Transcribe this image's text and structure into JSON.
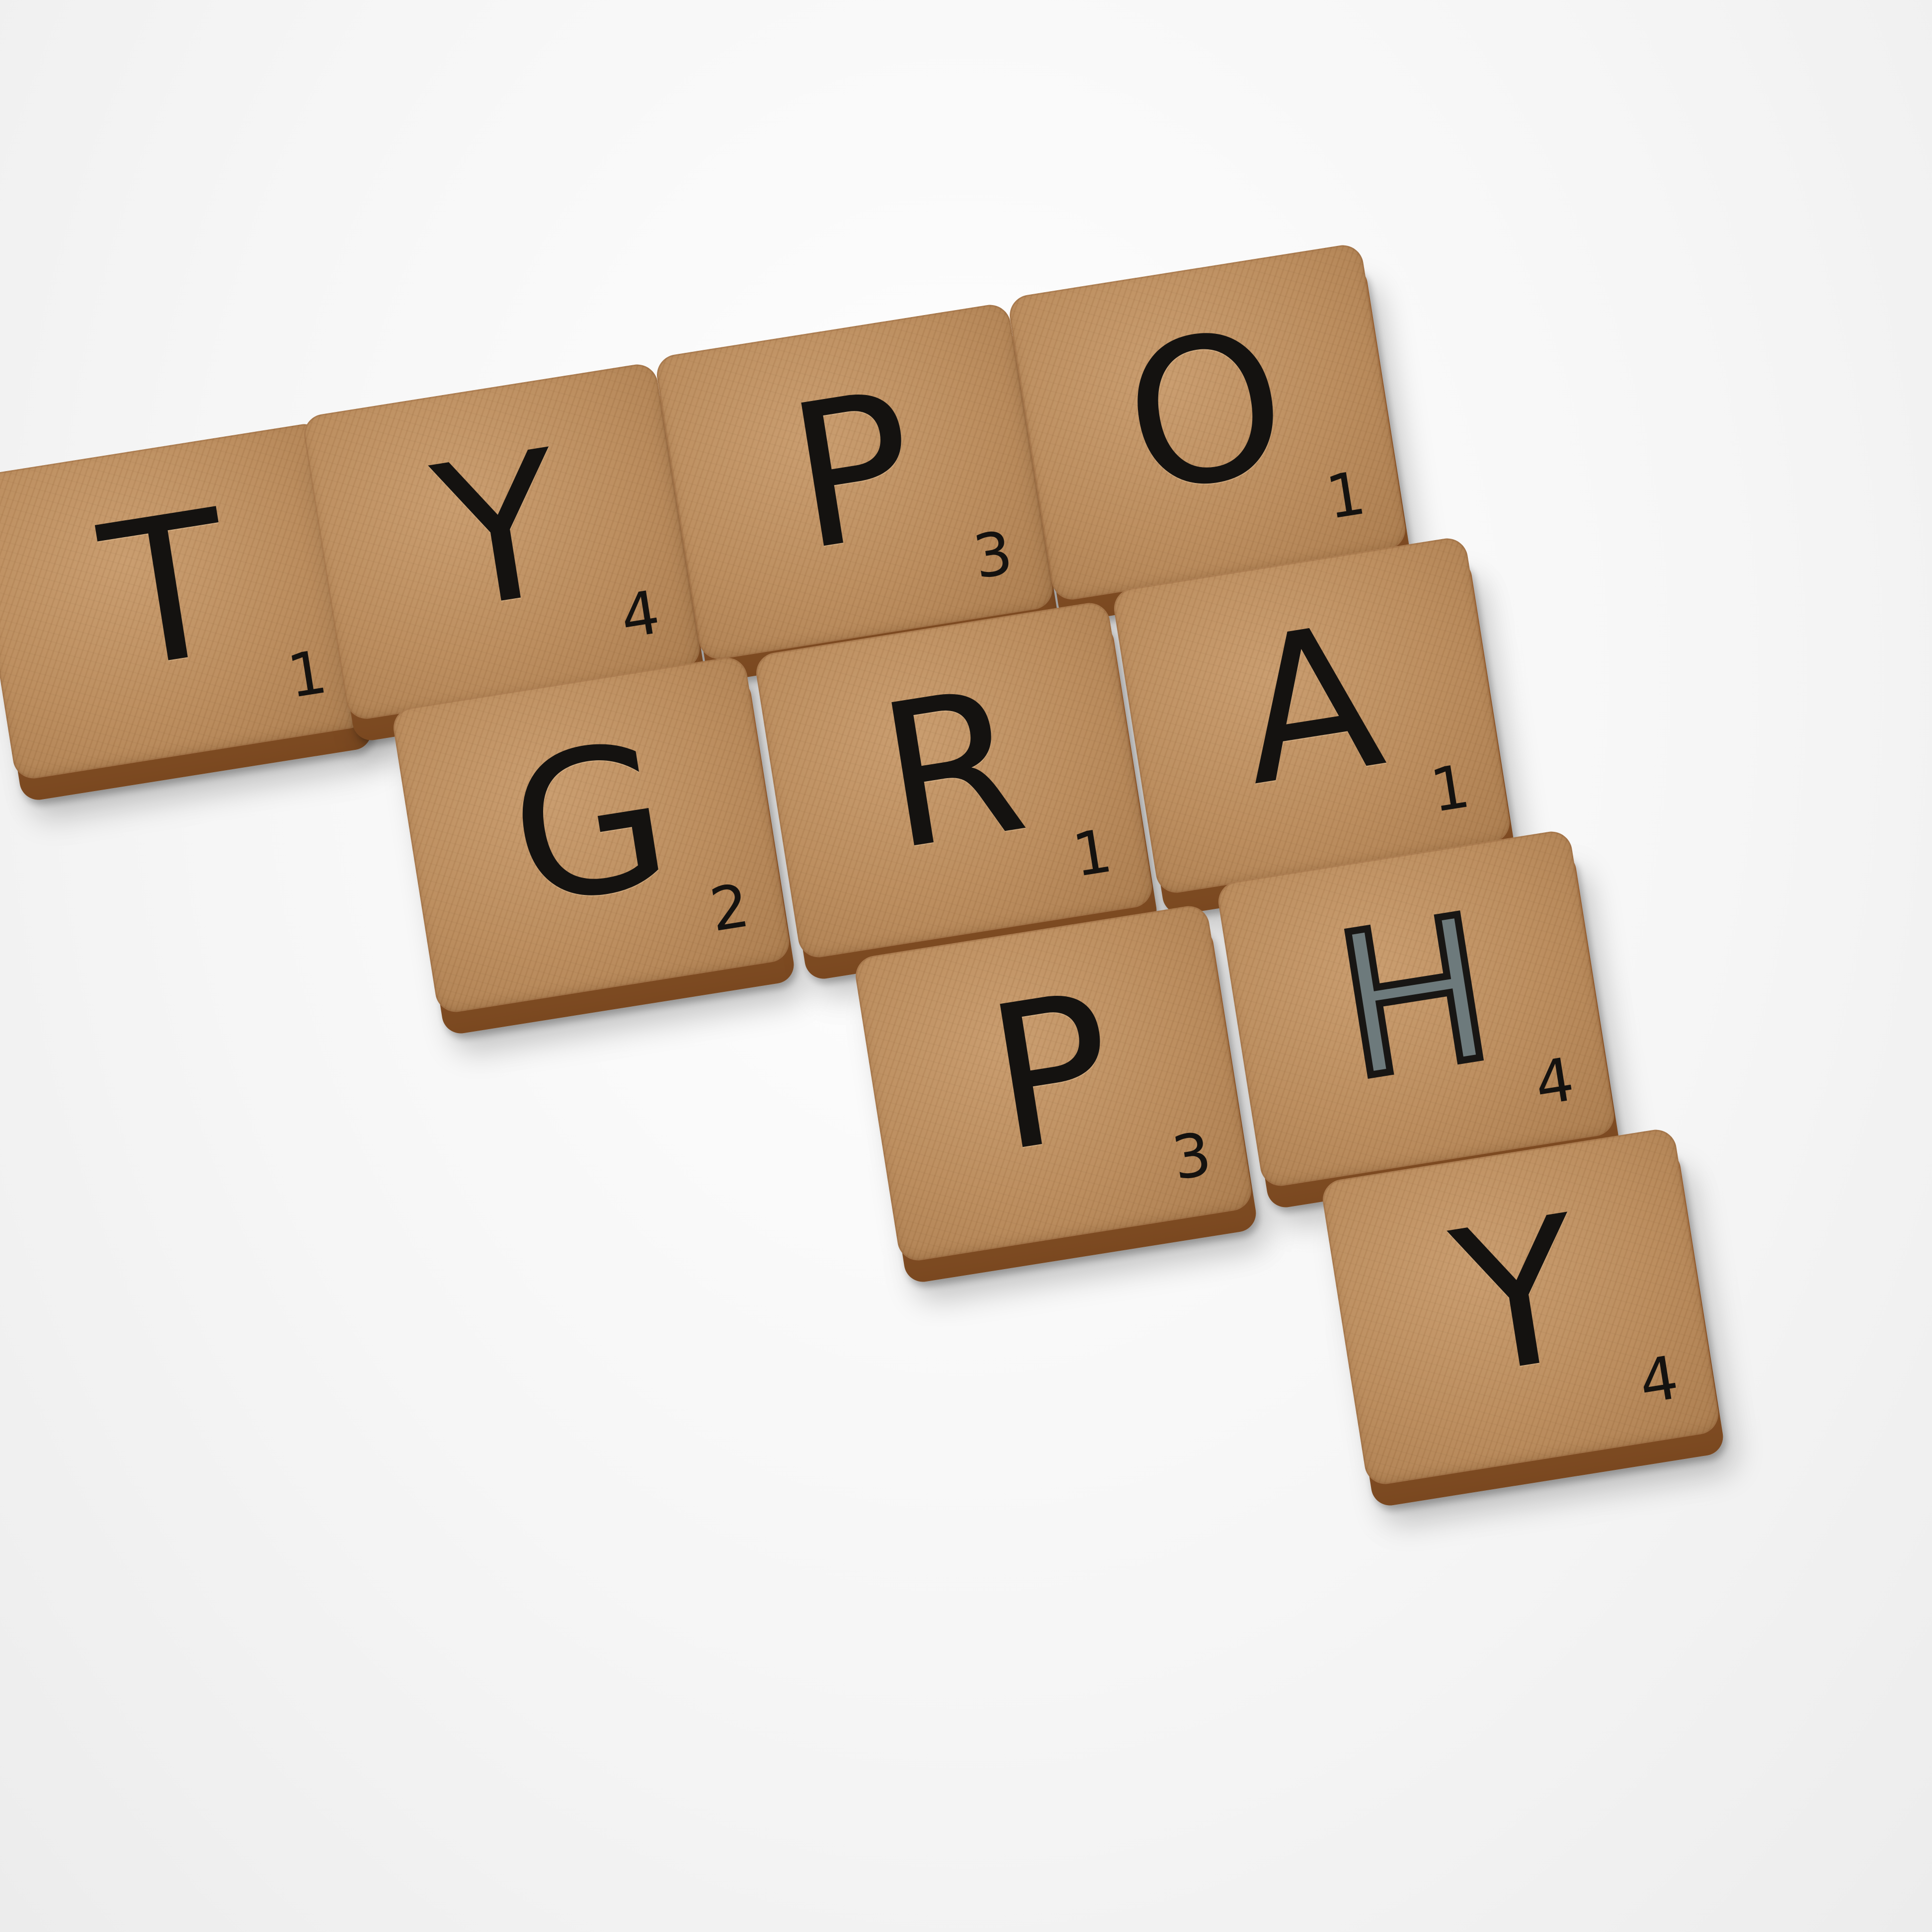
{
  "tiles": [
    {
      "letter": "T",
      "value": "1"
    },
    {
      "letter": "Y",
      "value": "4"
    },
    {
      "letter": "P",
      "value": "3"
    },
    {
      "letter": "O",
      "value": "1"
    },
    {
      "letter": "G",
      "value": "2"
    },
    {
      "letter": "R",
      "value": "1"
    },
    {
      "letter": "A",
      "value": "1"
    },
    {
      "letter": "P",
      "value": "3"
    },
    {
      "letter": "H",
      "value": "4"
    },
    {
      "letter": "Y",
      "value": "4"
    }
  ],
  "colors": {
    "background": "#f4f4f4",
    "tile_face": "#b98a5b",
    "tile_side": "#8a5428",
    "ink": "#141210"
  }
}
